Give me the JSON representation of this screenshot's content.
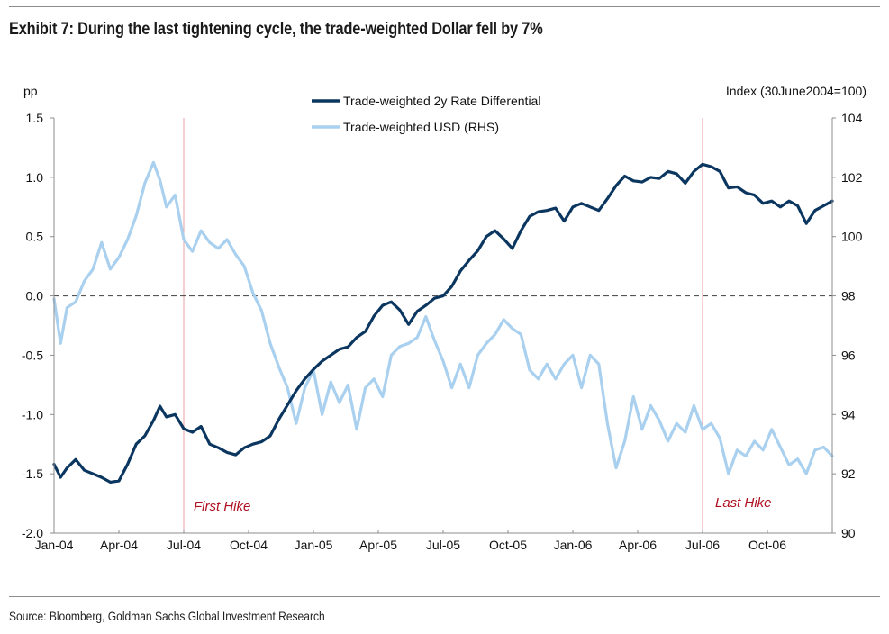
{
  "title": "Exhibit 7: During the last tightening cycle, the trade-weighted Dollar fell by 7%",
  "source": "Source: Bloomberg, Goldman Sachs Global Investment Research",
  "chart_data": {
    "type": "line",
    "title": "Exhibit 7: During the last tightening cycle, the trade-weighted Dollar fell by 7%",
    "left_axis": {
      "label": "pp",
      "range": [
        -2.0,
        1.5
      ],
      "ticks": [
        "1.5",
        "1.0",
        "0.5",
        "0.0",
        "-0.5",
        "-1.0",
        "-1.5",
        "-2.0"
      ],
      "tick_values": [
        1.5,
        1.0,
        0.5,
        0.0,
        -0.5,
        -1.0,
        -1.5,
        -2.0
      ]
    },
    "right_axis": {
      "label": "Index (30June2004=100)",
      "range": [
        90,
        104
      ],
      "ticks": [
        "104",
        "102",
        "100",
        "98",
        "96",
        "94",
        "92",
        "90"
      ],
      "tick_values": [
        104,
        102,
        100,
        98,
        96,
        94,
        92,
        90
      ]
    },
    "x_axis": {
      "range_months_from_jan04": [
        0,
        36
      ],
      "ticks": [
        "Jan-04",
        "Apr-04",
        "Jul-04",
        "Oct-04",
        "Jan-05",
        "Apr-05",
        "Jul-05",
        "Oct-05",
        "Jan-06",
        "Apr-06",
        "Jul-06",
        "Oct-06"
      ],
      "tick_months": [
        0,
        3,
        6,
        9,
        12,
        15,
        18,
        21,
        24,
        27,
        30,
        33
      ]
    },
    "zero_line": 0.0,
    "legend": {
      "placement": "top-center",
      "entries": [
        {
          "name": "Trade-weighted 2y Rate Differential",
          "color": "#0b3660"
        },
        {
          "name": "Trade-weighted USD (RHS)",
          "color": "#a9d0ee"
        }
      ]
    },
    "annotations": [
      {
        "text": "First Hike",
        "month": 6.0,
        "color": "#b01020"
      },
      {
        "text": "Last Hike",
        "month": 30.0,
        "color": "#b01020"
      }
    ],
    "series": [
      {
        "name": "Trade-weighted 2y Rate Differential",
        "axis": "left",
        "color": "#0b3660",
        "x_months": [
          0,
          0.3,
          0.6,
          1.0,
          1.4,
          1.8,
          2.2,
          2.6,
          3.0,
          3.4,
          3.8,
          4.2,
          4.6,
          4.9,
          5.2,
          5.6,
          6.0,
          6.4,
          6.8,
          7.2,
          7.6,
          8.0,
          8.4,
          8.8,
          9.2,
          9.6,
          10.0,
          10.4,
          10.8,
          11.2,
          11.6,
          12.0,
          12.4,
          12.8,
          13.2,
          13.6,
          14.0,
          14.4,
          14.8,
          15.2,
          15.6,
          16.0,
          16.4,
          16.8,
          17.2,
          17.6,
          18.0,
          18.4,
          18.8,
          19.2,
          19.6,
          20.0,
          20.4,
          20.8,
          21.2,
          21.6,
          22.0,
          22.4,
          22.8,
          23.2,
          23.6,
          24.0,
          24.4,
          24.8,
          25.2,
          25.6,
          26.0,
          26.4,
          26.8,
          27.2,
          27.6,
          28.0,
          28.4,
          28.8,
          29.2,
          29.6,
          30.0,
          30.4,
          30.8,
          31.2,
          31.6,
          32.0,
          32.4,
          32.8,
          33.2,
          33.6,
          34.0,
          34.4,
          34.8,
          35.2,
          35.6,
          36.0
        ],
        "values": [
          -1.42,
          -1.53,
          -1.45,
          -1.38,
          -1.47,
          -1.5,
          -1.53,
          -1.57,
          -1.56,
          -1.42,
          -1.25,
          -1.18,
          -1.05,
          -0.93,
          -1.02,
          -1.0,
          -1.12,
          -1.15,
          -1.1,
          -1.25,
          -1.28,
          -1.32,
          -1.34,
          -1.28,
          -1.25,
          -1.23,
          -1.18,
          -1.04,
          -0.92,
          -0.8,
          -0.7,
          -0.62,
          -0.55,
          -0.5,
          -0.45,
          -0.43,
          -0.35,
          -0.3,
          -0.17,
          -0.08,
          -0.05,
          -0.12,
          -0.24,
          -0.13,
          -0.08,
          -0.02,
          0.0,
          0.08,
          0.21,
          0.3,
          0.38,
          0.5,
          0.55,
          0.48,
          0.4,
          0.55,
          0.67,
          0.71,
          0.72,
          0.74,
          0.63,
          0.75,
          0.78,
          0.75,
          0.72,
          0.82,
          0.93,
          1.01,
          0.97,
          0.96,
          1.0,
          0.99,
          1.05,
          1.03,
          0.95,
          1.05,
          1.11,
          1.09,
          1.05,
          0.91,
          0.92,
          0.87,
          0.85,
          0.78,
          0.8,
          0.75,
          0.8,
          0.76,
          0.61,
          0.72,
          0.76,
          0.8
        ]
      },
      {
        "name": "Trade-weighted USD (RHS)",
        "axis": "right",
        "color": "#a9d0ee",
        "x_months": [
          0,
          0.3,
          0.6,
          1.0,
          1.4,
          1.8,
          2.2,
          2.6,
          3.0,
          3.4,
          3.8,
          4.2,
          4.6,
          4.9,
          5.2,
          5.6,
          6.0,
          6.4,
          6.8,
          7.2,
          7.6,
          8.0,
          8.4,
          8.8,
          9.2,
          9.6,
          10.0,
          10.4,
          10.8,
          11.2,
          11.6,
          12.0,
          12.4,
          12.8,
          13.2,
          13.6,
          14.0,
          14.4,
          14.8,
          15.2,
          15.6,
          16.0,
          16.4,
          16.8,
          17.2,
          17.6,
          18.0,
          18.4,
          18.8,
          19.2,
          19.6,
          20.0,
          20.4,
          20.8,
          21.2,
          21.6,
          22.0,
          22.4,
          22.8,
          23.2,
          23.6,
          24.0,
          24.4,
          24.8,
          25.2,
          25.6,
          26.0,
          26.4,
          26.8,
          27.2,
          27.6,
          28.0,
          28.4,
          28.8,
          29.2,
          29.6,
          30.0,
          30.4,
          30.8,
          31.2,
          31.6,
          32.0,
          32.4,
          32.8,
          33.2,
          33.6,
          34.0,
          34.4,
          34.8,
          35.2,
          35.6,
          36.0
        ],
        "values": [
          97.9,
          96.4,
          97.6,
          97.8,
          98.5,
          98.9,
          99.8,
          98.9,
          99.3,
          99.9,
          100.7,
          101.8,
          102.5,
          101.9,
          101.0,
          101.4,
          99.9,
          99.5,
          100.2,
          99.8,
          99.6,
          99.9,
          99.4,
          99.0,
          98.1,
          97.5,
          96.4,
          95.6,
          94.9,
          93.7,
          94.9,
          95.5,
          94.0,
          95.1,
          94.4,
          95.0,
          93.5,
          94.9,
          95.2,
          94.6,
          96.0,
          96.3,
          96.4,
          96.6,
          97.3,
          96.5,
          95.8,
          94.9,
          95.7,
          94.9,
          96.0,
          96.4,
          96.7,
          97.2,
          96.9,
          96.7,
          95.5,
          95.2,
          95.7,
          95.2,
          95.7,
          96.0,
          94.9,
          96.0,
          95.7,
          93.7,
          92.2,
          93.1,
          94.6,
          93.5,
          94.3,
          93.8,
          93.1,
          93.7,
          93.4,
          94.3,
          93.5,
          93.7,
          93.2,
          92.0,
          92.8,
          92.6,
          93.1,
          92.8,
          93.5,
          92.9,
          92.3,
          92.5,
          92.0,
          92.8,
          92.9,
          92.6
        ]
      }
    ]
  }
}
